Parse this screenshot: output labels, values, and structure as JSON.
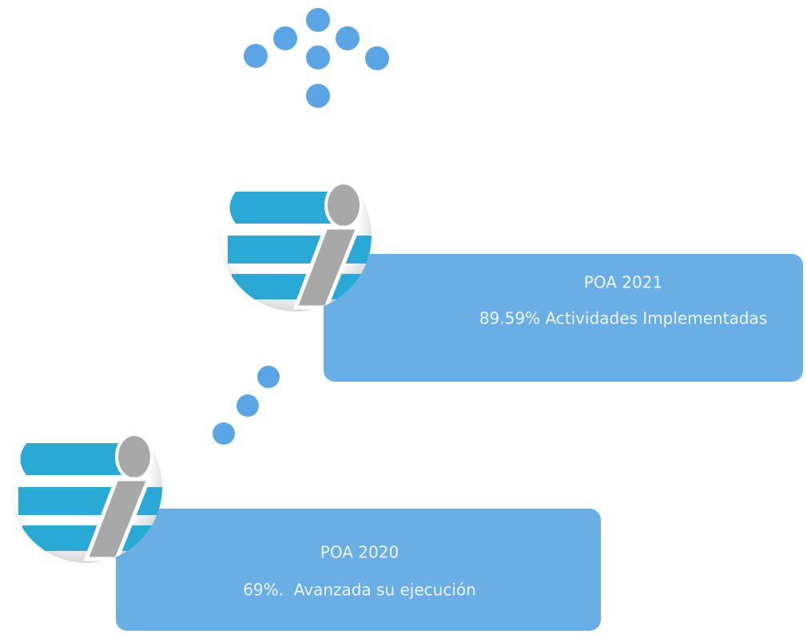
{
  "cards": [
    {
      "title": "POA 2021",
      "description": "89.59% Actividades Implementadas"
    },
    {
      "title": "POA 2020",
      "description": "69%.  Avanzada su ejecución"
    }
  ]
}
